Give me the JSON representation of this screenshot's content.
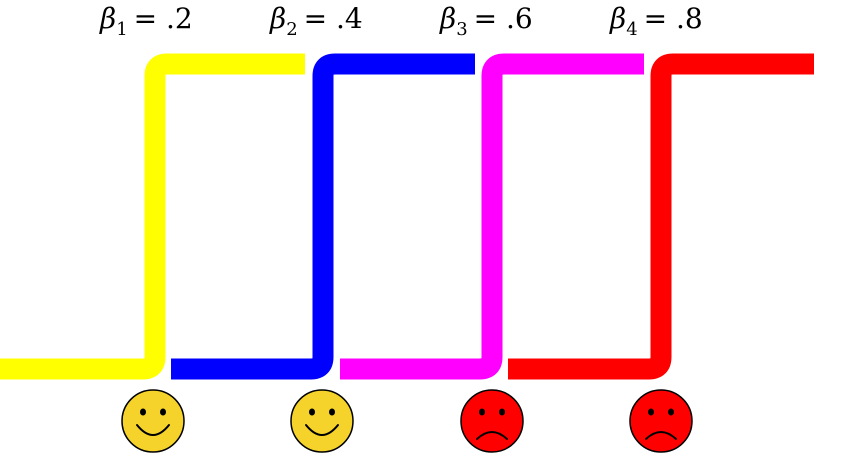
{
  "labels": [
    {
      "symbol": "β",
      "subscript": "1",
      "value": "= .2"
    },
    {
      "symbol": "β",
      "subscript": "2",
      "value": "= .4"
    },
    {
      "symbol": "β",
      "subscript": "3",
      "value": "= .6"
    },
    {
      "symbol": "β",
      "subscript": "4",
      "value": "= .8"
    }
  ],
  "steps": [
    {
      "color": "#ffff00",
      "face": "happy"
    },
    {
      "color": "#0000ff",
      "face": "happy"
    },
    {
      "color": "#ff00ff",
      "face": "sad"
    },
    {
      "color": "#ff0000",
      "face": "sad"
    }
  ],
  "face_colors": {
    "happy": "#f5d32a",
    "sad": "#ff0000"
  }
}
